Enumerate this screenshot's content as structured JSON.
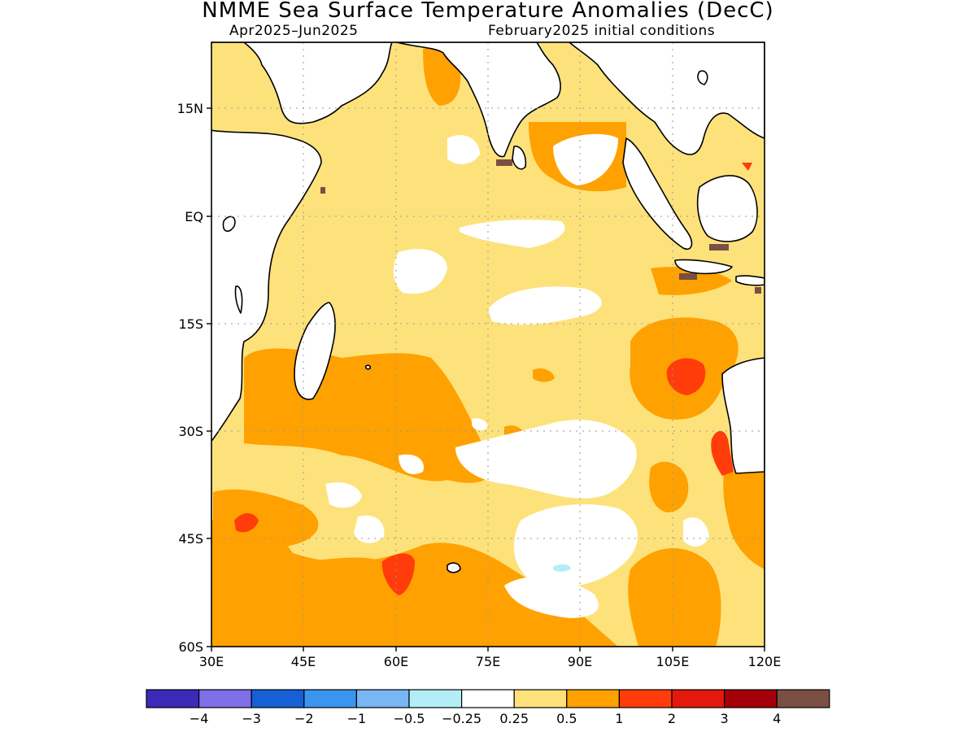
{
  "title": "NMME Sea Surface Temperature Anomalies (DecC)",
  "subtitle_left": "Apr2025–Jun2025",
  "subtitle_right": "February2025 initial conditions",
  "map": {
    "region": "Indian Ocean",
    "lon_range": [
      30,
      120
    ],
    "lat_range": [
      -60,
      24
    ],
    "x_ticks": [
      "30E",
      "45E",
      "60E",
      "75E",
      "90E",
      "105E",
      "120E"
    ],
    "y_ticks": [
      "15N",
      "EQ",
      "15S",
      "30S",
      "45S",
      "60S"
    ],
    "grid": "dotted"
  },
  "colorbar": {
    "colors": [
      "#3b2ab8",
      "#7f6ee8",
      "#1560d6",
      "#3b95f0",
      "#78b6f5",
      "#b3eef8",
      "#ffffff",
      "#fde27b",
      "#ffa100",
      "#ff3c0a",
      "#e3190d",
      "#a50009",
      "#7a4f43"
    ],
    "labels": [
      "−4",
      "−3",
      "−2",
      "−1",
      "−0.5",
      "−0.25",
      "0.25",
      "0.5",
      "1",
      "2",
      "3",
      "4"
    ]
  }
}
